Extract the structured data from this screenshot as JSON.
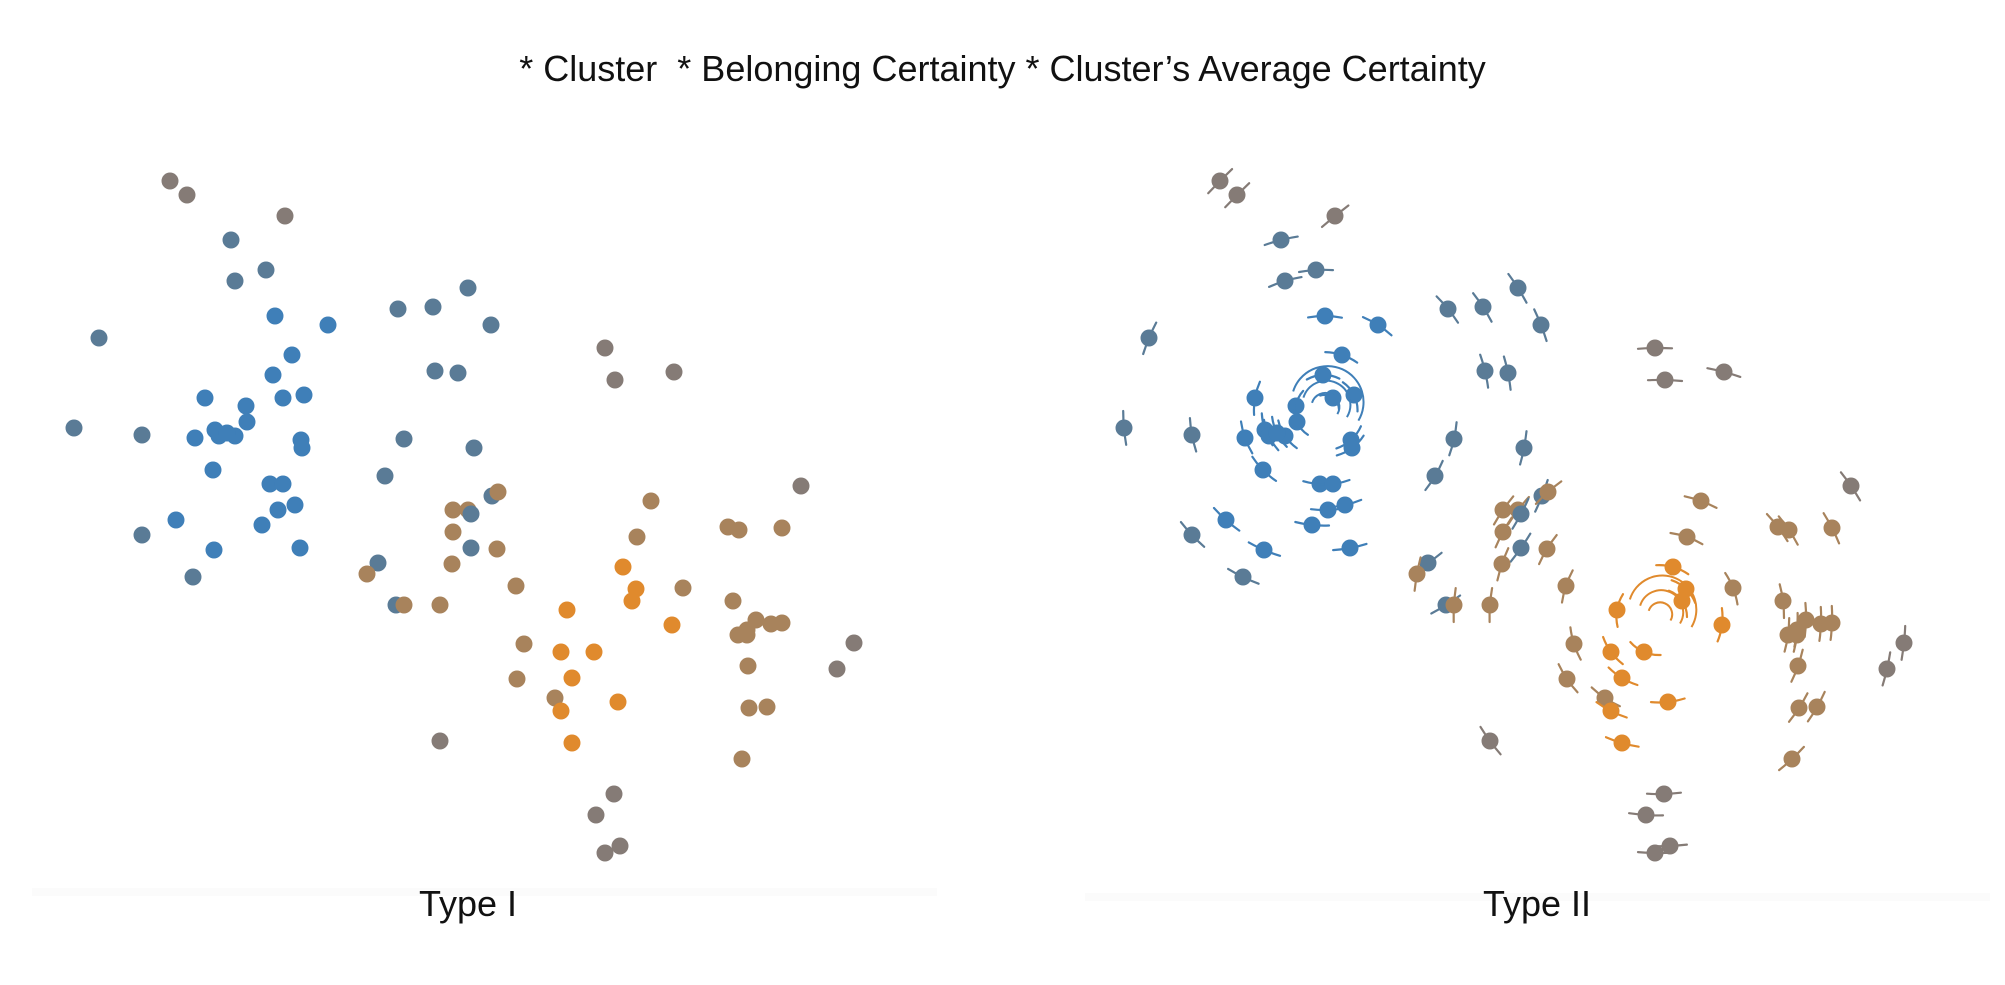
{
  "title": "* Cluster  * Belonging Certainty * Cluster’s Average Certainty",
  "panels": {
    "left": {
      "label": "Type I"
    },
    "right": {
      "label": "Type II"
    }
  },
  "colors": {
    "blue": "#3f7fb8",
    "blue_gray": "#5a7b96",
    "gray": "#857b76",
    "tan": "#a8835c",
    "orange": "#e08a2d",
    "orange_bright": "#ef7f1a"
  }
}
